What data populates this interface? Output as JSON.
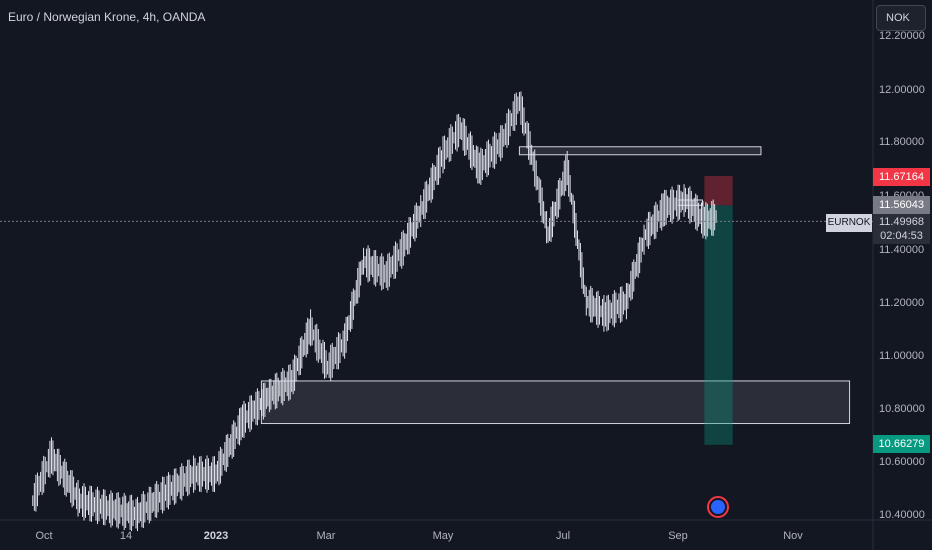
{
  "header": {
    "title": "Euro / Norwegian Krone, 4h, OANDA",
    "currency": "NOK"
  },
  "price_labels": {
    "stop": "11.67164",
    "current": "11.56043",
    "last": "11.49968",
    "countdown": "02:04:53",
    "target": "10.66279",
    "symbol": "EURNOK"
  },
  "colors": {
    "background": "#131722",
    "bar": "#e0e3eb",
    "stop_zone": "#f23645",
    "target_zone": "#089981",
    "box_border": "#d1d4dc"
  },
  "chart_data": {
    "type": "ohlc",
    "title": "Euro / Norwegian Krone, 4h, OANDA",
    "x_ticks": [
      "Oct",
      "14",
      "2023",
      "Mar",
      "May",
      "Jul",
      "Sep",
      "Nov"
    ],
    "y_ticks": [
      "12.20000",
      "12.00000",
      "11.80000",
      "11.60000",
      "11.40000",
      "11.20000",
      "11.00000",
      "10.80000",
      "10.60000",
      "10.40000"
    ],
    "ylim": [
      10.38,
      12.22
    ],
    "series": [
      {
        "x": [
          "2022-09-25",
          "2022-10-05",
          "2022-10-20",
          "2022-11-05",
          "2022-11-20",
          "2022-12-05",
          "2022-12-20",
          "2023-01-01",
          "2023-01-15",
          "2023-01-30",
          "2023-02-10",
          "2023-02-20",
          "2023-03-01",
          "2023-03-10",
          "2023-03-20",
          "2023-04-01",
          "2023-04-10",
          "2023-04-20",
          "2023-05-01",
          "2023-05-10",
          "2023-05-20",
          "2023-06-01",
          "2023-06-10",
          "2023-06-18",
          "2023-06-25",
          "2023-07-05",
          "2023-07-15",
          "2023-07-25",
          "2023-08-05",
          "2023-08-15",
          "2023-08-25",
          "2023-09-05",
          "2023-09-15",
          "2023-09-22"
        ],
        "y": [
          10.45,
          10.62,
          10.45,
          10.42,
          10.4,
          10.48,
          10.55,
          10.55,
          10.75,
          10.85,
          10.9,
          11.1,
          10.95,
          11.05,
          11.35,
          11.3,
          11.4,
          11.55,
          11.75,
          11.85,
          11.7,
          11.8,
          11.95,
          11.7,
          11.45,
          11.7,
          11.2,
          11.15,
          11.2,
          11.45,
          11.55,
          11.58,
          11.5,
          11.52
        ]
      }
    ],
    "zones": [
      {
        "type": "box",
        "top": 11.78,
        "bottom": 11.75,
        "start": "2023-06-10",
        "end": "2023-10-15"
      },
      {
        "type": "box",
        "top": 10.9,
        "bottom": 10.74,
        "start": "2023-01-25",
        "end": "2023-12-01"
      },
      {
        "type": "box",
        "top": 11.58,
        "bottom": 11.56,
        "start": "2023-09-01",
        "end": "2023-09-14"
      },
      {
        "type": "stop",
        "top": 11.67,
        "bottom": 11.56,
        "start": "2023-09-15",
        "end": "2023-09-30"
      },
      {
        "type": "target",
        "top": 11.56,
        "bottom": 10.66,
        "start": "2023-09-15",
        "end": "2023-09-30"
      }
    ]
  }
}
